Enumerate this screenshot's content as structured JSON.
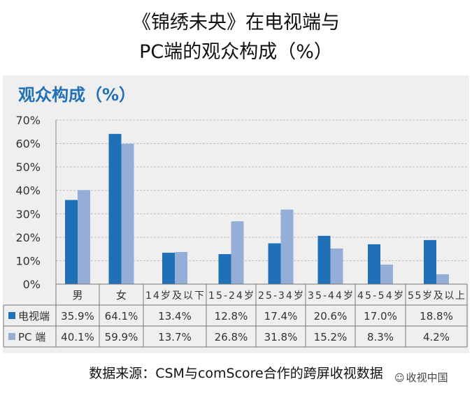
{
  "header": {
    "title_line1": "《锦绣未央》在电视端与",
    "title_line2": "PC端的观众构成（%）"
  },
  "chart_data": {
    "type": "bar",
    "title": "观众构成（%）",
    "categories": [
      "男",
      "女",
      "14岁及以下",
      "15-24岁",
      "25-34岁",
      "35-44岁",
      "45-54岁",
      "55岁及以上"
    ],
    "series": [
      {
        "name": "电视端",
        "values": [
          35.9,
          64.1,
          13.4,
          12.8,
          17.4,
          20.6,
          17.0,
          18.8
        ],
        "labels": [
          "35.9%",
          "64.1%",
          "13.4%",
          "12.8%",
          "17.4%",
          "20.6%",
          "17.0%",
          "18.8%"
        ],
        "color": "#1f70b7"
      },
      {
        "name": "PC 端",
        "values": [
          40.1,
          59.9,
          13.7,
          26.8,
          31.8,
          15.2,
          8.3,
          4.2
        ],
        "labels": [
          "40.1%",
          "59.9%",
          "13.7%",
          "26.8%",
          "31.8%",
          "15.2%",
          "8.3%",
          "4.2%"
        ],
        "color": "#95aed8"
      }
    ],
    "ylim": [
      0,
      70
    ],
    "yticks": [
      "0%",
      "10%",
      "20%",
      "30%",
      "40%",
      "50%",
      "60%",
      "70%"
    ],
    "grid": true,
    "legend": "data-table-left"
  },
  "footer": {
    "source": "数据来源：CSM与comScore合作的跨屏收视数据",
    "watermark": "收视中国",
    "watermark_icon": "wechat-icon"
  }
}
